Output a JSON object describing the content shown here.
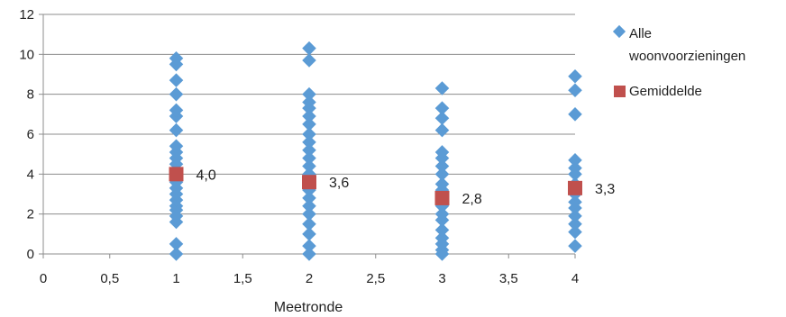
{
  "chart_data": {
    "type": "scatter",
    "xlabel": "Meetronde",
    "ylabel": "",
    "xlim": [
      0,
      4
    ],
    "ylim": [
      0,
      12
    ],
    "x_ticks": [
      "0",
      "0,5",
      "1",
      "1,5",
      "2",
      "2,5",
      "3",
      "3,5",
      "4"
    ],
    "y_ticks": [
      "0",
      "2",
      "4",
      "6",
      "8",
      "10",
      "12"
    ],
    "grid": "horizontal",
    "legend_position": "right",
    "series": [
      {
        "name": "Alle woonvoorzieningen",
        "color": "#5b9bd5",
        "marker": "diamond",
        "points": [
          [
            1,
            0.0
          ],
          [
            1,
            0.5
          ],
          [
            1,
            1.6
          ],
          [
            1,
            1.9
          ],
          [
            1,
            2.2
          ],
          [
            1,
            2.4
          ],
          [
            1,
            2.7
          ],
          [
            1,
            3.0
          ],
          [
            1,
            3.3
          ],
          [
            1,
            3.6
          ],
          [
            1,
            3.9
          ],
          [
            1,
            4.2
          ],
          [
            1,
            4.5
          ],
          [
            1,
            4.8
          ],
          [
            1,
            5.1
          ],
          [
            1,
            5.4
          ],
          [
            1,
            6.2
          ],
          [
            1,
            6.9
          ],
          [
            1,
            7.2
          ],
          [
            1,
            8.0
          ],
          [
            1,
            8.7
          ],
          [
            1,
            9.5
          ],
          [
            1,
            9.8
          ],
          [
            2,
            0.0
          ],
          [
            2,
            0.4
          ],
          [
            2,
            1.0
          ],
          [
            2,
            1.5
          ],
          [
            2,
            2.0
          ],
          [
            2,
            2.4
          ],
          [
            2,
            2.8
          ],
          [
            2,
            3.2
          ],
          [
            2,
            3.6
          ],
          [
            2,
            4.0
          ],
          [
            2,
            4.4
          ],
          [
            2,
            4.8
          ],
          [
            2,
            5.2
          ],
          [
            2,
            5.6
          ],
          [
            2,
            6.0
          ],
          [
            2,
            6.5
          ],
          [
            2,
            6.9
          ],
          [
            2,
            7.3
          ],
          [
            2,
            7.6
          ],
          [
            2,
            8.0
          ],
          [
            2,
            9.7
          ],
          [
            2,
            10.3
          ],
          [
            3,
            0.0
          ],
          [
            3,
            0.2
          ],
          [
            3,
            0.5
          ],
          [
            3,
            0.8
          ],
          [
            3,
            1.2
          ],
          [
            3,
            1.7
          ],
          [
            3,
            2.0
          ],
          [
            3,
            2.4
          ],
          [
            3,
            2.8
          ],
          [
            3,
            3.2
          ],
          [
            3,
            3.5
          ],
          [
            3,
            4.0
          ],
          [
            3,
            4.4
          ],
          [
            3,
            4.8
          ],
          [
            3,
            5.1
          ],
          [
            3,
            6.2
          ],
          [
            3,
            6.8
          ],
          [
            3,
            7.3
          ],
          [
            3,
            8.3
          ],
          [
            4,
            0.4
          ],
          [
            4,
            1.1
          ],
          [
            4,
            1.5
          ],
          [
            4,
            1.9
          ],
          [
            4,
            2.3
          ],
          [
            4,
            2.6
          ],
          [
            4,
            3.0
          ],
          [
            4,
            3.5
          ],
          [
            4,
            4.0
          ],
          [
            4,
            4.3
          ],
          [
            4,
            4.7
          ],
          [
            4,
            7.0
          ],
          [
            4,
            8.2
          ],
          [
            4,
            8.9
          ]
        ]
      },
      {
        "name": "Gemiddelde",
        "color": "#c0504d",
        "marker": "square",
        "points": [
          [
            1,
            4.0
          ],
          [
            2,
            3.6
          ],
          [
            3,
            2.8
          ],
          [
            4,
            3.3
          ]
        ],
        "labels": [
          "4,0",
          "3,6",
          "2,8",
          "3,3"
        ]
      }
    ]
  }
}
